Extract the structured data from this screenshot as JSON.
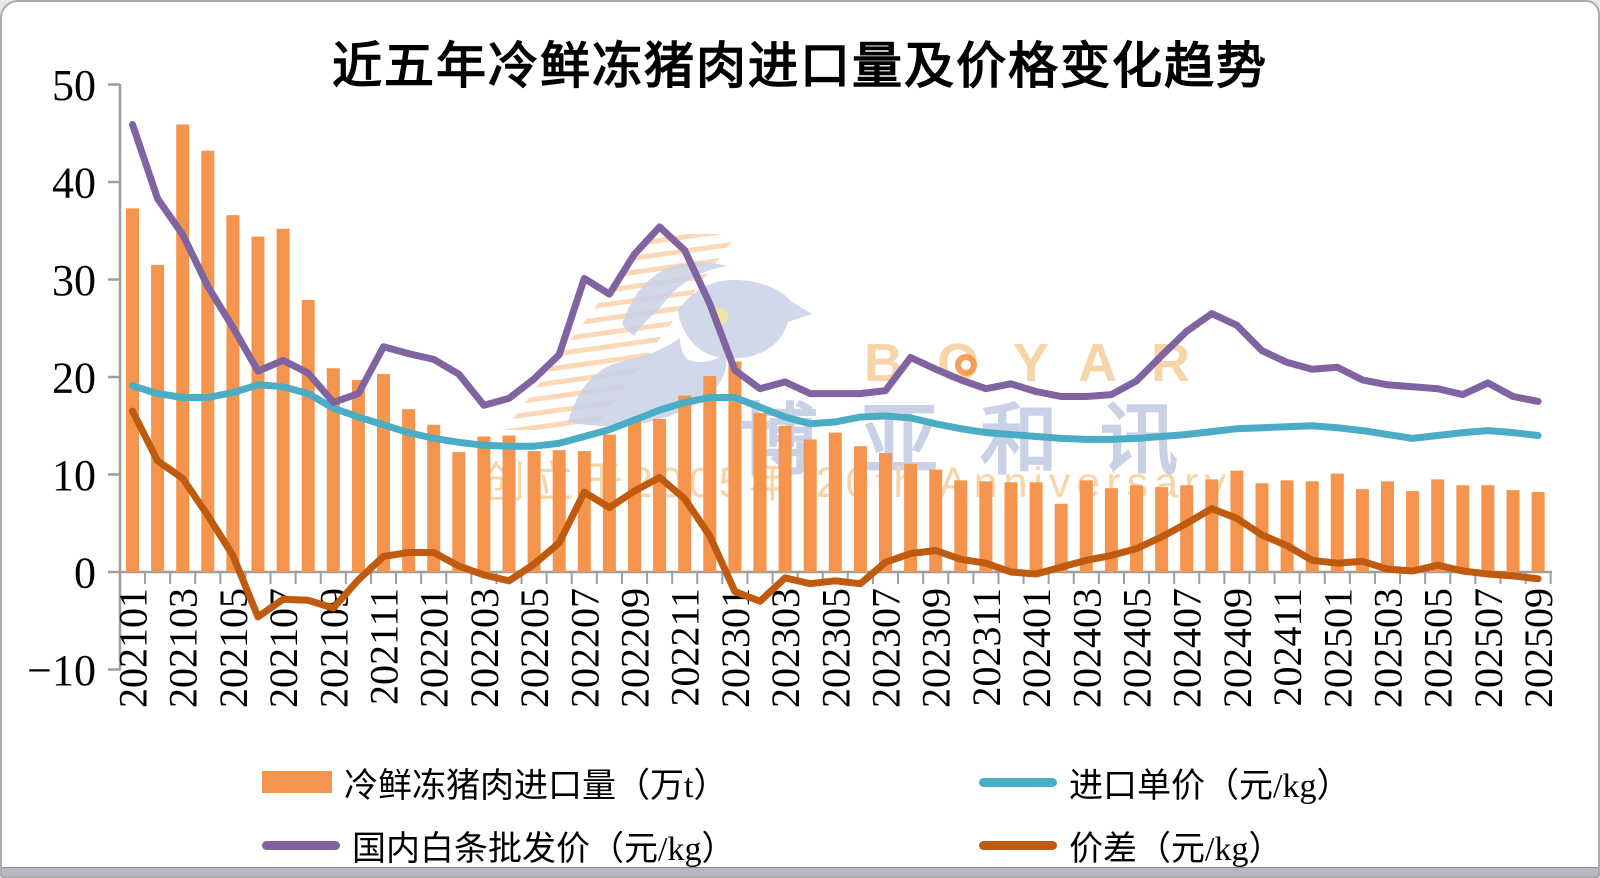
{
  "title": "近五年冷鲜冻猪肉进口量及价格变化趋势",
  "watermark": {
    "brand_en": "BOYAR",
    "brand_cn": "博亚和讯",
    "anniversary": "创立于2005年 20th Anniversary"
  },
  "colors": {
    "bar": "#F5944D",
    "import_price_line": "#4BACC6",
    "wholesale_price_line": "#8064A2",
    "price_diff_line": "#C05A0E",
    "axis": "#9E9E9E",
    "watermark_orange": "#F8D5A8",
    "watermark_blue": "#C9D1E6"
  },
  "chart_data": {
    "type": "bar",
    "title": "近五年冷鲜冻猪肉进口量及价格变化趋势",
    "xlabel": "",
    "ylabel": "",
    "ylim": [
      -10,
      50
    ],
    "yticks": [
      -10,
      0,
      10,
      20,
      30,
      40,
      50
    ],
    "grid": false,
    "legend_position": "bottom",
    "x": [
      "202101",
      "202102",
      "202103",
      "202104",
      "202105",
      "202106",
      "202107",
      "202108",
      "202109",
      "202110",
      "202111",
      "202112",
      "202201",
      "202202",
      "202203",
      "202204",
      "202205",
      "202206",
      "202207",
      "202208",
      "202209",
      "202210",
      "202211",
      "202212",
      "202301",
      "202302",
      "202303",
      "202304",
      "202305",
      "202306",
      "202307",
      "202308",
      "202309",
      "202310",
      "202311",
      "202312",
      "202401",
      "202402",
      "202403",
      "202404",
      "202405",
      "202406",
      "202407",
      "202408",
      "202409",
      "202410",
      "202411",
      "202412",
      "202501",
      "202502",
      "202503",
      "202504",
      "202505",
      "202506",
      "202507",
      "202508",
      "202509"
    ],
    "x_tick_step": 2,
    "series": [
      {
        "name": "冷鲜冻猪肉进口量（万t）",
        "kind": "bar",
        "color": "#F5944D",
        "values": [
          37.3,
          31.5,
          45.9,
          43.2,
          36.6,
          34.4,
          35.2,
          27.9,
          20.9,
          19.7,
          20.3,
          16.7,
          15.1,
          12.3,
          13.9,
          14.0,
          12.4,
          12.5,
          12.4,
          14.1,
          15.5,
          15.7,
          18.1,
          20.1,
          21.6,
          16.3,
          15.0,
          13.6,
          14.3,
          12.9,
          12.2,
          11.1,
          10.5,
          9.4,
          9.3,
          9.2,
          9.2,
          7.0,
          9.4,
          8.6,
          8.9,
          8.7,
          8.9,
          9.5,
          10.4,
          9.1,
          9.4,
          9.3,
          10.1,
          8.5,
          9.3,
          8.3,
          9.5,
          8.9,
          8.9,
          8.4,
          8.2
        ]
      },
      {
        "name": "进口单价（元/kg）",
        "kind": "line",
        "color": "#4BACC6",
        "values": [
          19.1,
          18.3,
          17.9,
          17.9,
          18.4,
          19.2,
          19.0,
          18.3,
          16.8,
          15.9,
          15.1,
          14.3,
          13.7,
          13.3,
          13.0,
          12.9,
          12.9,
          13.2,
          13.9,
          14.6,
          15.6,
          16.6,
          17.4,
          17.9,
          17.9,
          16.9,
          15.9,
          15.2,
          15.4,
          15.9,
          16.0,
          15.8,
          15.2,
          14.7,
          14.3,
          14.1,
          13.9,
          13.7,
          13.6,
          13.6,
          13.7,
          13.9,
          14.1,
          14.4,
          14.7,
          14.8,
          14.9,
          15.0,
          14.8,
          14.5,
          14.1,
          13.7,
          14.0,
          14.3,
          14.5,
          14.3,
          14.0
        ]
      },
      {
        "name": "国内白条批发价（元/kg）",
        "kind": "line",
        "color": "#8064A2",
        "values": [
          45.9,
          38.3,
          34.6,
          29.3,
          25.1,
          20.6,
          21.7,
          20.4,
          17.4,
          18.3,
          23.1,
          22.4,
          21.8,
          20.3,
          17.1,
          17.8,
          19.8,
          22.3,
          30.1,
          28.5,
          32.6,
          35.4,
          33.0,
          27.5,
          20.7,
          18.8,
          19.5,
          18.3,
          18.3,
          18.3,
          18.6,
          22.0,
          20.8,
          19.7,
          18.8,
          19.3,
          18.5,
          18.0,
          18.0,
          18.2,
          19.6,
          22.2,
          24.7,
          26.5,
          25.3,
          22.7,
          21.5,
          20.8,
          21.0,
          19.7,
          19.2,
          19.0,
          18.8,
          18.2,
          19.4,
          18.0,
          17.5
        ]
      },
      {
        "name": "价差（元/kg）",
        "kind": "line",
        "color": "#C05A0E",
        "values": [
          16.5,
          11.4,
          9.6,
          5.8,
          1.7,
          -4.6,
          -2.8,
          -2.9,
          -3.7,
          -0.8,
          1.6,
          2.0,
          2.0,
          0.6,
          -0.3,
          -0.9,
          0.8,
          3.0,
          8.2,
          6.6,
          8.3,
          9.7,
          7.5,
          3.7,
          -2.0,
          -3.0,
          -0.6,
          -1.2,
          -0.9,
          -1.2,
          1.0,
          1.9,
          2.2,
          1.3,
          0.9,
          0.0,
          -0.2,
          0.5,
          1.2,
          1.7,
          2.4,
          3.6,
          5.0,
          6.5,
          5.5,
          3.8,
          2.7,
          1.2,
          0.9,
          1.1,
          0.3,
          0.1,
          0.7,
          0.1,
          -0.2,
          -0.4,
          -0.7
        ]
      }
    ]
  }
}
